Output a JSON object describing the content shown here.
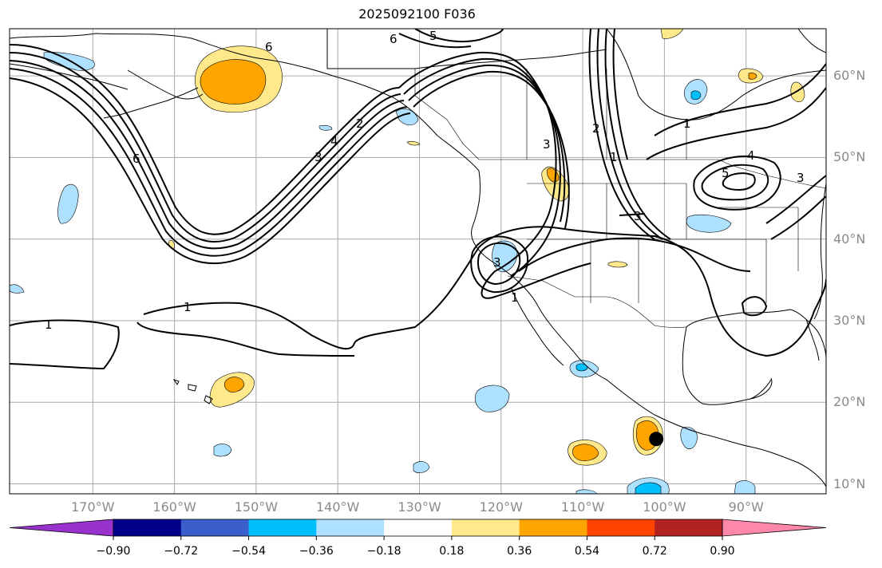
{
  "title": "2025092100 F036",
  "map": {
    "projection": "cylindrical",
    "lon_range": [
      -180,
      -80
    ],
    "lat_range": [
      8,
      65
    ],
    "lon_ticks": [
      {
        "lon": -170,
        "label": "170°W"
      },
      {
        "lon": -160,
        "label": "160°W"
      },
      {
        "lon": -150,
        "label": "150°W"
      },
      {
        "lon": -140,
        "label": "140°W"
      },
      {
        "lon": -130,
        "label": "130°W"
      },
      {
        "lon": -120,
        "label": "120°W"
      },
      {
        "lon": -110,
        "label": "110°W"
      },
      {
        "lon": -100,
        "label": "100°W"
      },
      {
        "lon": -90,
        "label": "90°W"
      }
    ],
    "lat_ticks": [
      {
        "lat": 60,
        "label": "60°N"
      },
      {
        "lat": 50,
        "label": "50°N"
      },
      {
        "lat": 40,
        "label": "40°N"
      },
      {
        "lat": 30,
        "label": "30°N"
      },
      {
        "lat": 20,
        "label": "20°N"
      },
      {
        "lat": 10,
        "label": "10°N"
      }
    ],
    "gridlines": true,
    "contour_labels": [
      "6",
      "5",
      "6",
      "4",
      "3",
      "2",
      "1",
      "1",
      "6",
      "2",
      "1",
      "4",
      "5",
      "3",
      "3",
      "3",
      "1",
      "3",
      "1"
    ],
    "marker": {
      "type": "filled-circle",
      "color": "#000000",
      "lon": -101.0,
      "lat": 15.5
    },
    "colors": {
      "land_outline": "#000000",
      "grid": "#aaaaaa",
      "contour": "#000000"
    }
  },
  "colorbar": {
    "ticks": [
      "−0.90",
      "−0.72",
      "−0.54",
      "−0.36",
      "−0.18",
      "0.18",
      "0.36",
      "0.54",
      "0.72",
      "0.90"
    ],
    "colors": [
      "#9932cc",
      "#00008b",
      "#3a5fcd",
      "#00bfff",
      "#aee1ff",
      "#ffffff",
      "#ffe98a",
      "#ffa500",
      "#ff4500",
      "#b22222",
      "#ff88aa"
    ]
  }
}
